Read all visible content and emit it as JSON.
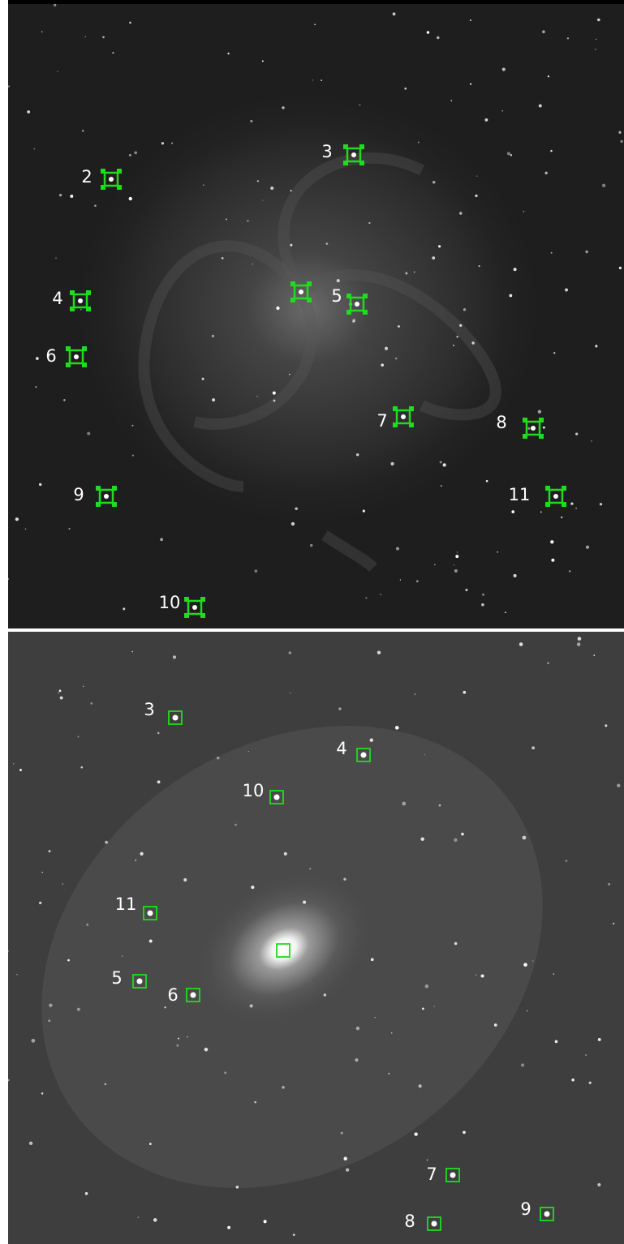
{
  "panels": [
    {
      "labels": [
        "2",
        "3",
        "4",
        "5",
        "6",
        "7",
        "8",
        "9",
        "10",
        "11"
      ]
    },
    {
      "labels": [
        "3",
        "4",
        "10",
        "11",
        "5",
        "6",
        "7",
        "8",
        "9"
      ]
    }
  ]
}
